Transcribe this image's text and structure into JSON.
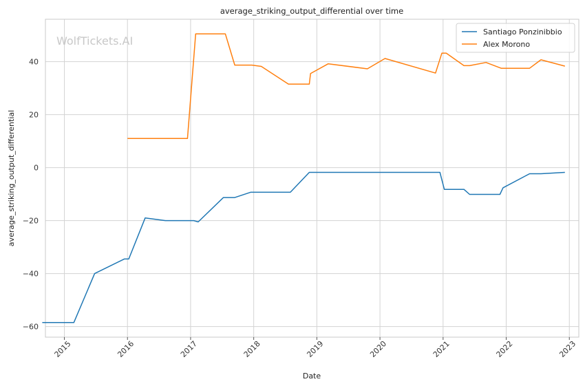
{
  "chart_data": {
    "type": "line",
    "title": "average_striking_output_differential over time",
    "xlabel": "Date",
    "ylabel": "average_striking_output_differential",
    "watermark": "WolfTickets.AI",
    "xlim": [
      2014.7,
      2023.15
    ],
    "ylim": [
      -64,
      56
    ],
    "x_ticks": [
      2015,
      2016,
      2017,
      2018,
      2019,
      2020,
      2021,
      2022,
      2023
    ],
    "y_ticks": [
      -60,
      -40,
      -20,
      0,
      20,
      40
    ],
    "grid": true,
    "legend_position": "top-right",
    "series": [
      {
        "name": "Santiago Ponzinibbio",
        "color": "#1f77b4",
        "x": [
          2014.65,
          2015.15,
          2015.48,
          2015.95,
          2016.02,
          2016.28,
          2016.6,
          2017.05,
          2017.12,
          2017.52,
          2017.7,
          2017.95,
          2018.1,
          2018.58,
          2018.88,
          2019.1,
          2019.9,
          2020.2,
          2020.5,
          2020.95,
          2021.02,
          2021.33,
          2021.42,
          2021.7,
          2021.9,
          2021.95,
          2022.37,
          2022.55,
          2022.93
        ],
        "y": [
          -58.5,
          -58.5,
          -40,
          -34.5,
          -34.5,
          -19,
          -20,
          -20,
          -20.5,
          -11.3,
          -11.3,
          -9.3,
          -9.3,
          -9.3,
          -1.8,
          -1.8,
          -1.8,
          -1.8,
          -1.8,
          -1.8,
          -8.2,
          -8.2,
          -10.1,
          -10.1,
          -10.1,
          -7.6,
          -2.3,
          -2.3,
          -1.8
        ]
      },
      {
        "name": "Alex Morono",
        "color": "#ff7f0e",
        "x": [
          2016.0,
          2016.95,
          2017.08,
          2017.55,
          2017.7,
          2017.97,
          2018.12,
          2018.55,
          2018.88,
          2018.9,
          2019.18,
          2019.8,
          2020.08,
          2020.88,
          2020.98,
          2021.05,
          2021.33,
          2021.42,
          2021.68,
          2021.92,
          2022.2,
          2022.37,
          2022.55,
          2022.93
        ],
        "y": [
          11,
          11,
          50.5,
          50.5,
          38.7,
          38.7,
          38.2,
          31.5,
          31.5,
          35.5,
          39.2,
          37.3,
          41.2,
          35.7,
          43.2,
          43.2,
          38.5,
          38.5,
          39.7,
          37.5,
          37.5,
          37.5,
          40.7,
          38.3
        ]
      }
    ]
  }
}
